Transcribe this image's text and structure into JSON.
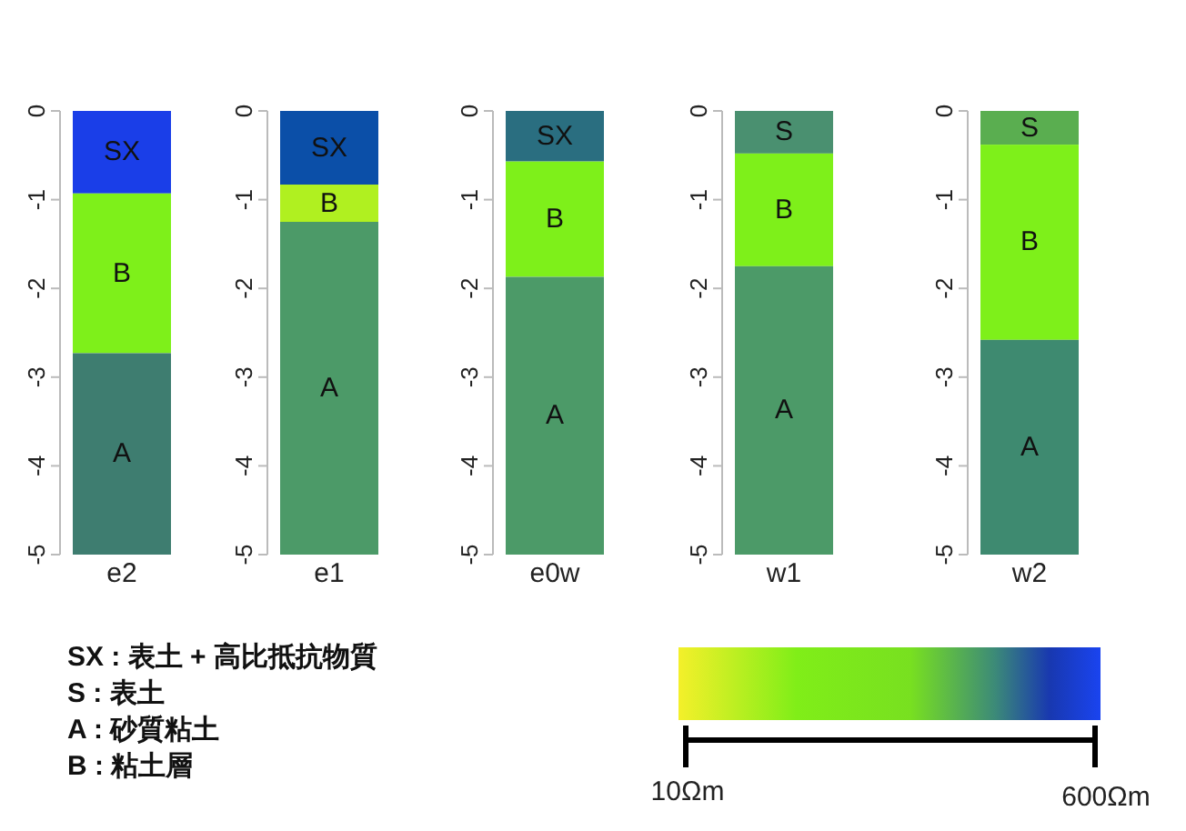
{
  "chart_data": [
    {
      "type": "bar",
      "stacked": true,
      "categories": [
        "e2"
      ],
      "ylim": [
        -5,
        0
      ],
      "yticks": [
        0,
        -1,
        -2,
        -3,
        -4,
        -5
      ],
      "series": [
        {
          "name": "SX",
          "color": "#1a3ee8",
          "values": [
            -0.93
          ]
        },
        {
          "name": "B",
          "color": "#7ef01a",
          "values": [
            -1.8
          ]
        },
        {
          "name": "A",
          "color": "#3e7d70",
          "values": [
            -2.27
          ]
        }
      ]
    },
    {
      "type": "bar",
      "stacked": true,
      "categories": [
        "e1"
      ],
      "ylim": [
        -5,
        0
      ],
      "yticks": [
        0,
        -1,
        -2,
        -3,
        -4,
        -5
      ],
      "series": [
        {
          "name": "SX",
          "color": "#0b4fa8",
          "values": [
            -0.83
          ]
        },
        {
          "name": "B",
          "color": "#b0f020",
          "values": [
            -0.42
          ]
        },
        {
          "name": "A",
          "color": "#4c9a68",
          "values": [
            -3.75
          ]
        }
      ]
    },
    {
      "type": "bar",
      "stacked": true,
      "categories": [
        "e0w"
      ],
      "ylim": [
        -5,
        0
      ],
      "yticks": [
        0,
        -1,
        -2,
        -3,
        -4,
        -5
      ],
      "series": [
        {
          "name": "SX",
          "color": "#2a6e80",
          "values": [
            -0.57
          ]
        },
        {
          "name": "B",
          "color": "#7ef01a",
          "values": [
            -1.3
          ]
        },
        {
          "name": "A",
          "color": "#4c9a68",
          "values": [
            -3.13
          ]
        }
      ]
    },
    {
      "type": "bar",
      "stacked": true,
      "categories": [
        "w1"
      ],
      "ylim": [
        -5,
        0
      ],
      "yticks": [
        0,
        -1,
        -2,
        -3,
        -4,
        -5
      ],
      "series": [
        {
          "name": "S",
          "color": "#4a9070",
          "values": [
            -0.48
          ]
        },
        {
          "name": "B",
          "color": "#7ef01a",
          "values": [
            -1.27
          ]
        },
        {
          "name": "A",
          "color": "#4c9a68",
          "values": [
            -3.25
          ]
        }
      ]
    },
    {
      "type": "bar",
      "stacked": true,
      "categories": [
        "w2"
      ],
      "ylim": [
        -5,
        0
      ],
      "yticks": [
        0,
        -1,
        -2,
        -3,
        -4,
        -5
      ],
      "series": [
        {
          "name": "S",
          "color": "#5aae50",
          "values": [
            -0.38
          ]
        },
        {
          "name": "B",
          "color": "#7ef01a",
          "values": [
            -2.2
          ]
        },
        {
          "name": "A",
          "color": "#3e8a70",
          "values": [
            -2.42
          ]
        }
      ]
    },
    {
      "type": "other",
      "annotations": [
        "SX : 表土 + 高比抵抗物質",
        "S : 表土",
        "A : 砂質粘土",
        "B : 粘土層",
        "10Ωm",
        "600Ωm"
      ]
    }
  ]
}
